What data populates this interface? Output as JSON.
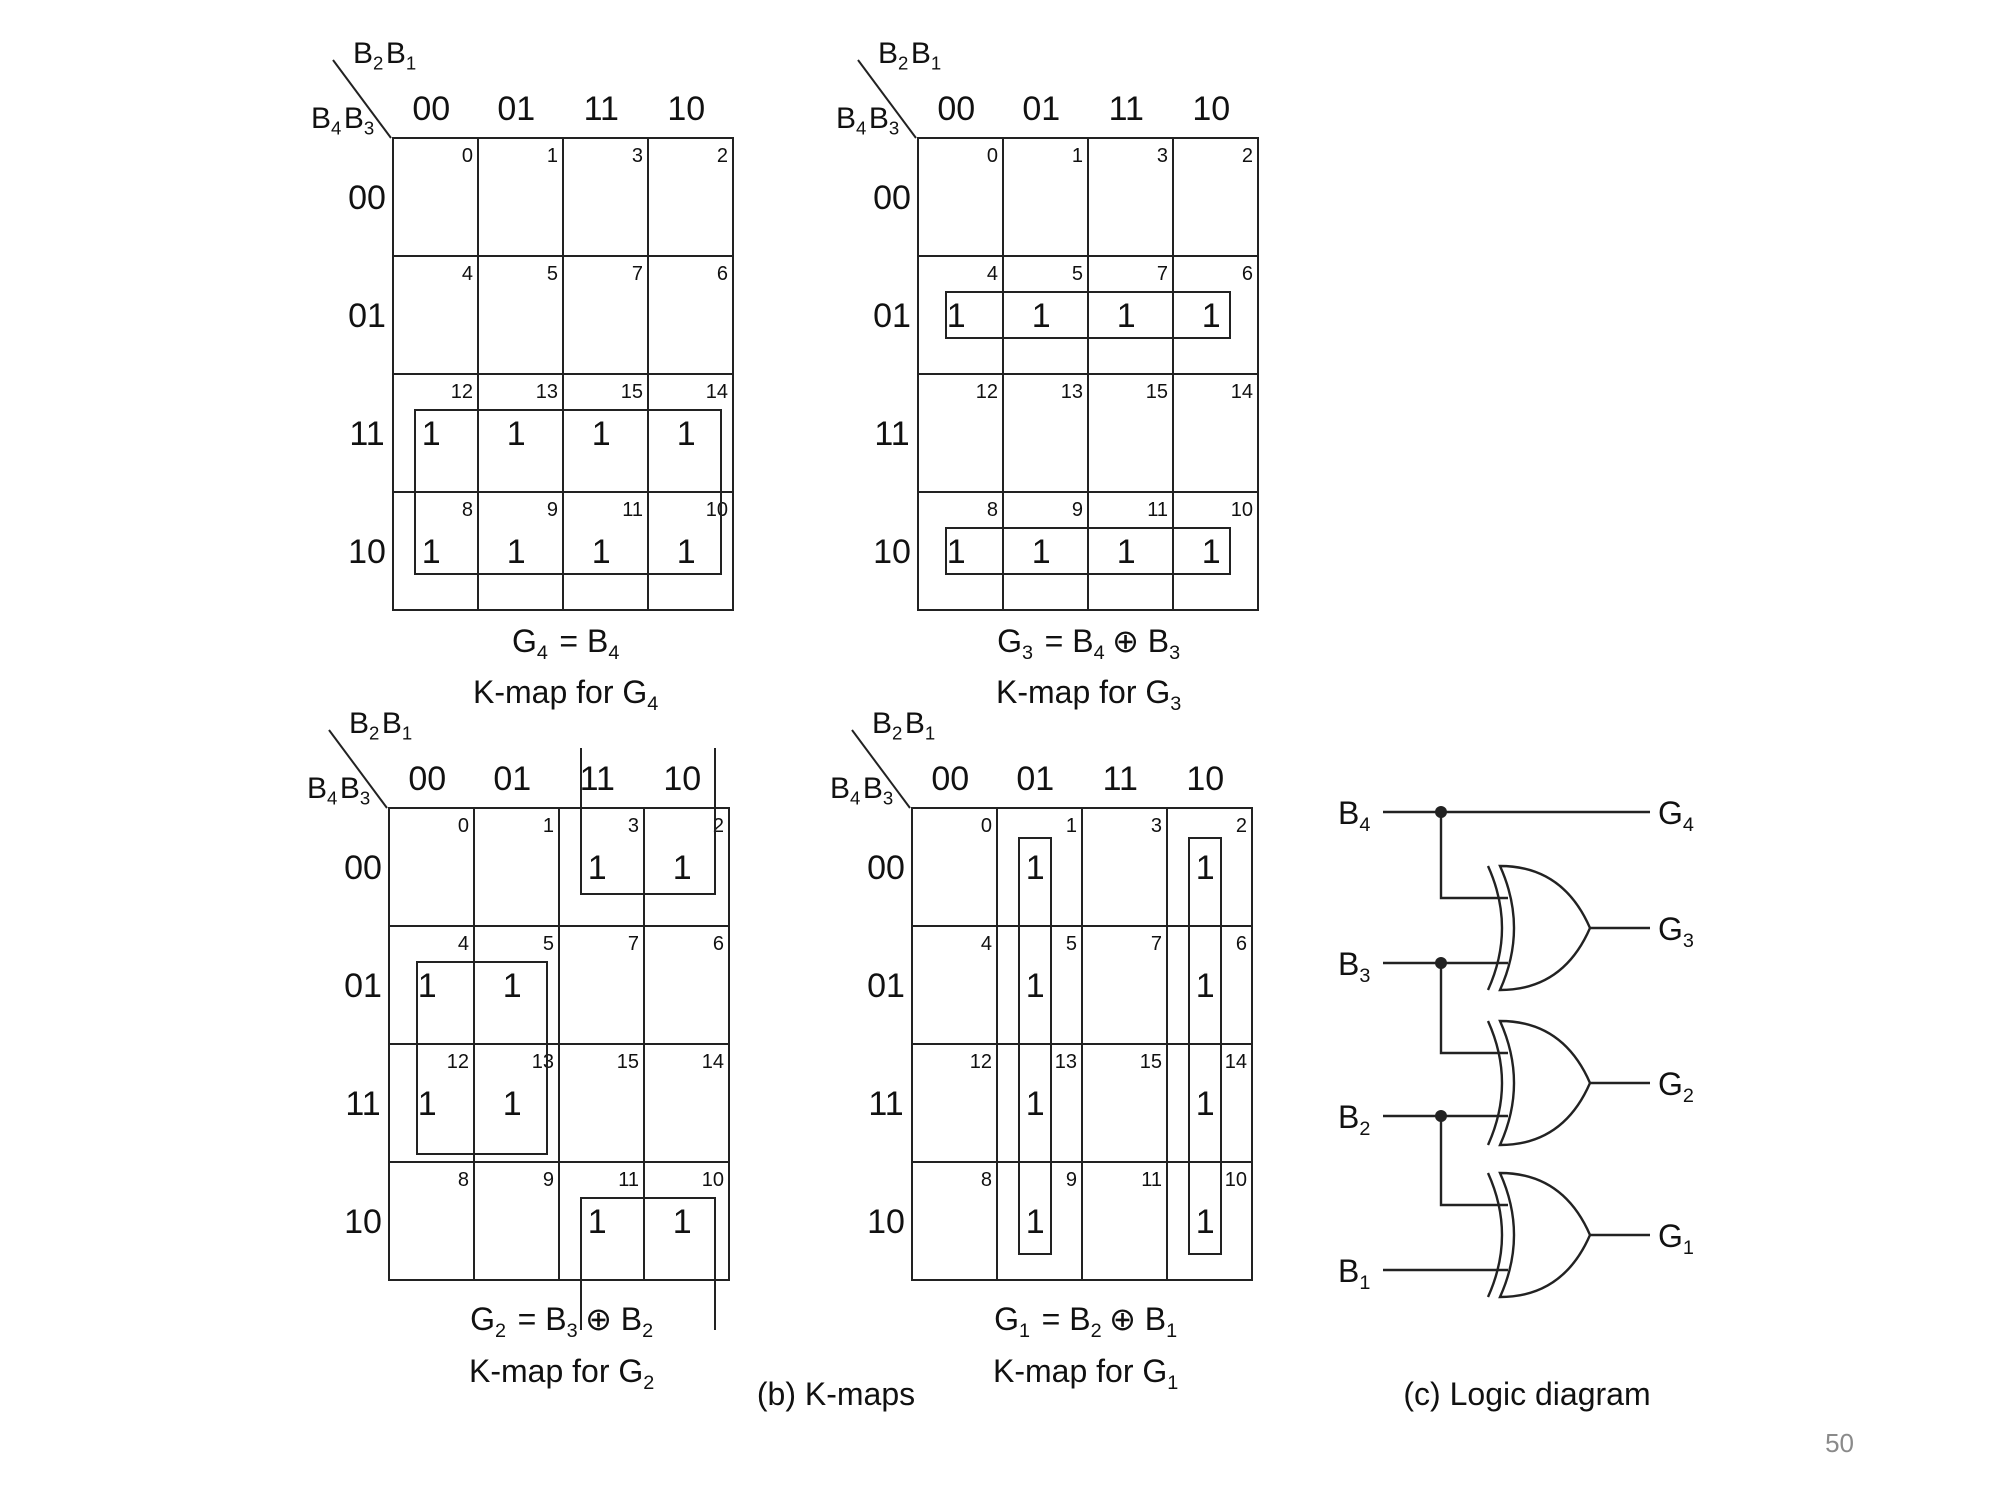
{
  "slide": {
    "page_number": "50"
  },
  "kmaps": [
    {
      "id": "g4",
      "row_var": {
        "a": "B",
        "a_sub": "4",
        "b": "B",
        "b_sub": "3"
      },
      "col_var": {
        "a": "B",
        "a_sub": "2",
        "b": "B",
        "b_sub": "1"
      },
      "col_headers": [
        "00",
        "01",
        "11",
        "10"
      ],
      "row_headers": [
        "00",
        "01",
        "11",
        "10"
      ],
      "cell_numbers": [
        [
          "0",
          "1",
          "3",
          "2"
        ],
        [
          "4",
          "5",
          "7",
          "6"
        ],
        [
          "12",
          "13",
          "15",
          "14"
        ],
        [
          "8",
          "9",
          "11",
          "10"
        ]
      ],
      "ones": [
        [
          0,
          0,
          0,
          0
        ],
        [
          0,
          0,
          0,
          0
        ],
        [
          1,
          1,
          1,
          1
        ],
        [
          1,
          1,
          1,
          1
        ]
      ],
      "equation": {
        "lhs": "G",
        "lhs_sub": "4",
        "rhs": [
          {
            "t": "B",
            "s": "4"
          }
        ]
      },
      "caption": {
        "text": "K-map for G",
        "sub": "4"
      }
    },
    {
      "id": "g3",
      "row_var": {
        "a": "B",
        "a_sub": "4",
        "b": "B",
        "b_sub": "3"
      },
      "col_var": {
        "a": "B",
        "a_sub": "2",
        "b": "B",
        "b_sub": "1"
      },
      "col_headers": [
        "00",
        "01",
        "11",
        "10"
      ],
      "row_headers": [
        "00",
        "01",
        "11",
        "10"
      ],
      "cell_numbers": [
        [
          "0",
          "1",
          "3",
          "2"
        ],
        [
          "4",
          "5",
          "7",
          "6"
        ],
        [
          "12",
          "13",
          "15",
          "14"
        ],
        [
          "8",
          "9",
          "11",
          "10"
        ]
      ],
      "ones": [
        [
          0,
          0,
          0,
          0
        ],
        [
          1,
          1,
          1,
          1
        ],
        [
          0,
          0,
          0,
          0
        ],
        [
          1,
          1,
          1,
          1
        ]
      ],
      "equation": {
        "lhs": "G",
        "lhs_sub": "3",
        "rhs": [
          {
            "t": "B",
            "s": "4"
          },
          {
            "t": "⊕"
          },
          {
            "t": "B",
            "s": "3"
          }
        ]
      },
      "caption": {
        "text": "K-map for G",
        "sub": "3"
      }
    },
    {
      "id": "g2",
      "row_var": {
        "a": "B",
        "a_sub": "4",
        "b": "B",
        "b_sub": "3"
      },
      "col_var": {
        "a": "B",
        "a_sub": "2",
        "b": "B",
        "b_sub": "1"
      },
      "col_headers": [
        "00",
        "01",
        "11",
        "10"
      ],
      "row_headers": [
        "00",
        "01",
        "11",
        "10"
      ],
      "cell_numbers": [
        [
          "0",
          "1",
          "3",
          "2"
        ],
        [
          "4",
          "5",
          "7",
          "6"
        ],
        [
          "12",
          "13",
          "15",
          "14"
        ],
        [
          "8",
          "9",
          "11",
          "10"
        ]
      ],
      "ones": [
        [
          0,
          0,
          1,
          1
        ],
        [
          1,
          1,
          0,
          0
        ],
        [
          1,
          1,
          0,
          0
        ],
        [
          0,
          0,
          1,
          1
        ]
      ],
      "equation": {
        "lhs": "G",
        "lhs_sub": "2",
        "rhs": [
          {
            "t": "B",
            "s": "3"
          },
          {
            "t": "⊕"
          },
          {
            "t": "B",
            "s": "2"
          }
        ]
      },
      "caption": {
        "text": "K-map for G",
        "sub": "2"
      }
    },
    {
      "id": "g1",
      "row_var": {
        "a": "B",
        "a_sub": "4",
        "b": "B",
        "b_sub": "3"
      },
      "col_var": {
        "a": "B",
        "a_sub": "2",
        "b": "B",
        "b_sub": "1"
      },
      "col_headers": [
        "00",
        "01",
        "11",
        "10"
      ],
      "row_headers": [
        "00",
        "01",
        "11",
        "10"
      ],
      "cell_numbers": [
        [
          "0",
          "1",
          "3",
          "2"
        ],
        [
          "4",
          "5",
          "7",
          "6"
        ],
        [
          "12",
          "13",
          "15",
          "14"
        ],
        [
          "8",
          "9",
          "11",
          "10"
        ]
      ],
      "ones": [
        [
          0,
          1,
          0,
          1
        ],
        [
          0,
          1,
          0,
          1
        ],
        [
          0,
          1,
          0,
          1
        ],
        [
          0,
          1,
          0,
          1
        ]
      ],
      "equation": {
        "lhs": "G",
        "lhs_sub": "1",
        "rhs": [
          {
            "t": "B",
            "s": "2"
          },
          {
            "t": "⊕"
          },
          {
            "t": "B",
            "s": "1"
          }
        ]
      },
      "caption": {
        "text": "K-map for G",
        "sub": "1"
      }
    }
  ],
  "kmaps_caption": "(b) K-maps",
  "logic_diagram": {
    "caption": "(c) Logic diagram",
    "inputs": [
      {
        "t": "B",
        "s": "4"
      },
      {
        "t": "B",
        "s": "3"
      },
      {
        "t": "B",
        "s": "2"
      },
      {
        "t": "B",
        "s": "1"
      }
    ],
    "outputs": [
      {
        "t": "G",
        "s": "4"
      },
      {
        "t": "G",
        "s": "3"
      },
      {
        "t": "G",
        "s": "2"
      },
      {
        "t": "G",
        "s": "1"
      }
    ]
  }
}
